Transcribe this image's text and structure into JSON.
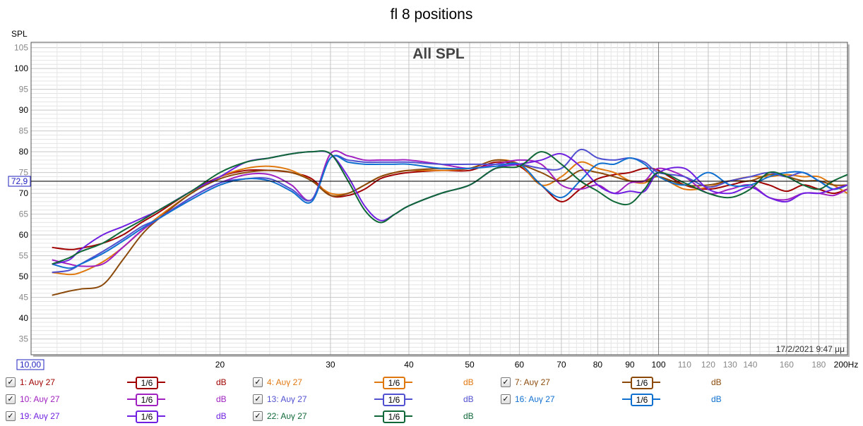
{
  "title": "fl 8 positions",
  "chart_data": {
    "type": "line",
    "title": "fl 8 positions",
    "subtitle": "All SPL",
    "ylabel": "SPL",
    "xlabel": "Hz",
    "xscale": "log",
    "xlim": [
      10,
      200
    ],
    "ylim": [
      31.2,
      106.3
    ],
    "grid": true,
    "y_ticks": [
      "105",
      "100",
      "95",
      "90",
      "85",
      "80",
      "75",
      "70",
      "65",
      "60",
      "55",
      "50",
      "45",
      "40",
      "35"
    ],
    "x_ticks": [
      {
        "v": 20,
        "t": "20"
      },
      {
        "v": 30,
        "t": "30"
      },
      {
        "v": 40,
        "t": "40"
      },
      {
        "v": 50,
        "t": "50"
      },
      {
        "v": 60,
        "t": "60"
      },
      {
        "v": 70,
        "t": "70"
      },
      {
        "v": 80,
        "t": "80"
      },
      {
        "v": 90,
        "t": "90"
      },
      {
        "v": 100,
        "t": "100"
      },
      {
        "v": 110,
        "t": "110"
      },
      {
        "v": 120,
        "t": "120"
      },
      {
        "v": 130,
        "t": "130"
      },
      {
        "v": 140,
        "t": "140"
      },
      {
        "v": 160,
        "t": "160"
      },
      {
        "v": 180,
        "t": "180"
      },
      {
        "v": 200,
        "t": "200Hz"
      }
    ],
    "reference_line": {
      "value": 72.9,
      "label": "72,9"
    },
    "x_start_label": "10,00",
    "timestamp": "17/2/2021 9:47 μμ",
    "x": [
      10.8,
      11.5,
      12,
      13,
      14,
      15,
      16,
      18,
      20,
      22,
      24,
      26,
      28,
      30,
      32,
      34,
      36,
      38,
      40,
      45,
      50,
      55,
      60,
      65,
      70,
      75,
      80,
      85,
      90,
      95,
      100,
      110,
      120,
      130,
      140,
      150,
      160,
      170,
      180,
      190,
      200
    ],
    "series": [
      {
        "name": "1: Αυγ 27",
        "color": "#a00000",
        "values": [
          57,
          56.5,
          56.8,
          58,
          60,
          63,
          65.5,
          70.5,
          74,
          75.5,
          75.5,
          75,
          73.5,
          69.5,
          69.5,
          71,
          73.5,
          74.5,
          75,
          75.5,
          75.5,
          77.5,
          76.5,
          72,
          68,
          71,
          73.5,
          74.5,
          75,
          76,
          75.5,
          72,
          71,
          72,
          73,
          72,
          70.5,
          72,
          71,
          70,
          71
        ]
      },
      {
        "name": "4: Αυγ 27",
        "color": "#e07810",
        "values": [
          51,
          50.5,
          51,
          53.5,
          57,
          61,
          64.5,
          70,
          74,
          76,
          76.5,
          75.5,
          73,
          70,
          70,
          72,
          74,
          75,
          75.5,
          75.5,
          76,
          78,
          77,
          72,
          74,
          77.5,
          76,
          75,
          73,
          72.5,
          74,
          71,
          71.5,
          73,
          74,
          74,
          74.5,
          74,
          74,
          72,
          70
        ]
      },
      {
        "name": "7: Αυγ 27",
        "color": "#8b4a0a",
        "values": [
          45.5,
          46.5,
          47,
          48,
          54,
          60,
          64,
          70,
          73.5,
          75,
          75.5,
          75,
          73,
          69.5,
          70,
          72,
          74,
          75,
          75.5,
          76,
          76,
          78,
          77,
          75,
          73,
          75.5,
          75,
          74,
          73,
          73,
          74,
          72,
          72,
          73,
          73,
          74.5,
          74,
          73,
          73,
          72,
          72
        ]
      },
      {
        "name": "10: Αυγ 27",
        "color": "#a020c0",
        "values": [
          54,
          53,
          52.5,
          53,
          57,
          61,
          64,
          69,
          72.5,
          74.5,
          74.5,
          72,
          68.5,
          79.5,
          79,
          78,
          78,
          78,
          78,
          77,
          76,
          77,
          78,
          77,
          72,
          71,
          72,
          70,
          72.5,
          73,
          76,
          74,
          70,
          71,
          72,
          69,
          68.5,
          70,
          70,
          69.5,
          71
        ]
      },
      {
        "name": "13: Αυγ 27",
        "color": "#5050d0",
        "values": [
          51,
          51.5,
          53,
          56,
          59,
          62,
          64,
          69,
          72.5,
          73.5,
          73.5,
          71,
          68.5,
          78.5,
          78,
          77.5,
          77.5,
          77.5,
          77.5,
          77,
          77,
          77,
          77,
          76,
          76,
          80.5,
          78.5,
          78,
          78.5,
          77.5,
          75,
          74,
          71.5,
          73,
          74,
          75,
          74,
          75,
          73,
          71,
          72
        ]
      },
      {
        "name": "16: Αυγ 27",
        "color": "#1070d0",
        "values": [
          53,
          52,
          53,
          55.5,
          58.5,
          61.5,
          64,
          68.5,
          72,
          73.5,
          73,
          70.5,
          68,
          78.5,
          77.5,
          77,
          77,
          77,
          77,
          76,
          76,
          76.5,
          77,
          72,
          69,
          73,
          77,
          77,
          78.5,
          77,
          74,
          72,
          75,
          72,
          72,
          74,
          75,
          75,
          73,
          71,
          72
        ]
      },
      {
        "name": "19: Αυγ 27",
        "color": "#7020e0",
        "values": [
          53,
          54,
          56.5,
          60,
          62,
          64,
          66,
          70.5,
          74,
          77.5,
          78.5,
          79.5,
          80,
          79.5,
          74,
          67,
          63.5,
          65,
          67,
          70,
          72,
          76,
          77,
          78,
          79.5,
          76.5,
          72,
          70,
          70.5,
          70.5,
          75,
          76,
          71,
          70,
          71.5,
          69,
          68,
          70,
          70,
          71,
          72
        ]
      },
      {
        "name": "22: Αυγ 27",
        "color": "#106838",
        "values": [
          53,
          54.5,
          56,
          58,
          61,
          63.5,
          66,
          70.5,
          75,
          77.5,
          78.5,
          79.5,
          80,
          79.5,
          73,
          66,
          63,
          65,
          67,
          70,
          72,
          76,
          76.5,
          80,
          77,
          73,
          70.5,
          68,
          67.5,
          71,
          75,
          72.5,
          70,
          69,
          71,
          75,
          74,
          72,
          71,
          73,
          74.5
        ]
      }
    ]
  },
  "legend": [
    {
      "label": "1: Αυγ 27",
      "smoothing": "1/6",
      "unit": "dB",
      "color": "#a00000",
      "checked": "✓"
    },
    {
      "label": "4: Αυγ 27",
      "smoothing": "1/6",
      "unit": "dB",
      "color": "#e07810",
      "checked": "✓"
    },
    {
      "label": "7: Αυγ 27",
      "smoothing": "1/6",
      "unit": "dB",
      "color": "#8b4a0a",
      "checked": "✓"
    },
    {
      "label": "10: Αυγ 27",
      "smoothing": "1/6",
      "unit": "dB",
      "color": "#a020c0",
      "checked": "✓"
    },
    {
      "label": "13: Αυγ 27",
      "smoothing": "1/6",
      "unit": "dB",
      "color": "#5050d0",
      "checked": "✓"
    },
    {
      "label": "16: Αυγ 27",
      "smoothing": "1/6",
      "unit": "dB",
      "color": "#1070d0",
      "checked": "✓"
    },
    {
      "label": "19: Αυγ 27",
      "smoothing": "1/6",
      "unit": "dB",
      "color": "#7020e0",
      "checked": "✓"
    },
    {
      "label": "22: Αυγ 27",
      "smoothing": "1/6",
      "unit": "dB",
      "color": "#106838",
      "checked": "✓"
    }
  ]
}
